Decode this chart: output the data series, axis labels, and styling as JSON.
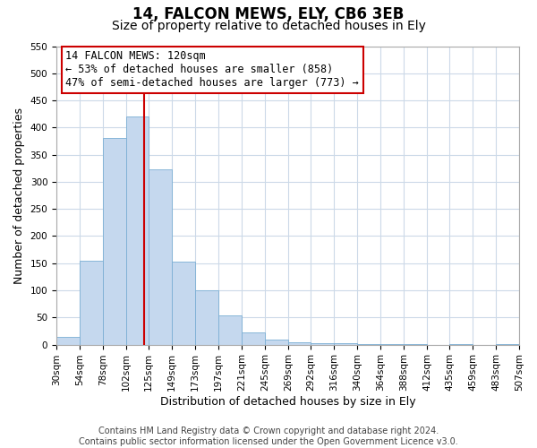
{
  "title": "14, FALCON MEWS, ELY, CB6 3EB",
  "subtitle": "Size of property relative to detached houses in Ely",
  "xlabel": "Distribution of detached houses by size in Ely",
  "ylabel": "Number of detached properties",
  "bar_left_edges": [
    30,
    54,
    78,
    102,
    125,
    149,
    173,
    197,
    221,
    245,
    269,
    292,
    316,
    340,
    364,
    388,
    412,
    435,
    459,
    483
  ],
  "bar_heights": [
    15,
    155,
    380,
    420,
    323,
    153,
    100,
    54,
    22,
    10,
    5,
    2,
    2,
    1,
    1,
    1,
    0,
    1,
    0,
    1
  ],
  "bar_widths": [
    24,
    24,
    24,
    23,
    24,
    24,
    24,
    24,
    24,
    24,
    23,
    24,
    24,
    24,
    24,
    24,
    23,
    24,
    24,
    24
  ],
  "bar_color": "#c5d8ee",
  "bar_edge_color": "#7bafd4",
  "property_line_x": 120,
  "property_line_color": "#cc0000",
  "annotation_line1": "14 FALCON MEWS: 120sqm",
  "annotation_line2": "← 53% of detached houses are smaller (858)",
  "annotation_line3": "47% of semi-detached houses are larger (773) →",
  "ylim": [
    0,
    550
  ],
  "yticks": [
    0,
    50,
    100,
    150,
    200,
    250,
    300,
    350,
    400,
    450,
    500,
    550
  ],
  "xtick_labels": [
    "30sqm",
    "54sqm",
    "78sqm",
    "102sqm",
    "125sqm",
    "149sqm",
    "173sqm",
    "197sqm",
    "221sqm",
    "245sqm",
    "269sqm",
    "292sqm",
    "316sqm",
    "340sqm",
    "364sqm",
    "388sqm",
    "412sqm",
    "435sqm",
    "459sqm",
    "483sqm",
    "507sqm"
  ],
  "xtick_positions": [
    30,
    54,
    78,
    102,
    125,
    149,
    173,
    197,
    221,
    245,
    269,
    292,
    316,
    340,
    364,
    388,
    412,
    435,
    459,
    483,
    507
  ],
  "xlim_left": 30,
  "xlim_right": 507,
  "footer_text": "Contains HM Land Registry data © Crown copyright and database right 2024.\nContains public sector information licensed under the Open Government Licence v3.0.",
  "background_color": "#ffffff",
  "grid_color": "#ccd9e8",
  "title_fontsize": 12,
  "subtitle_fontsize": 10,
  "axis_label_fontsize": 9,
  "tick_fontsize": 7.5,
  "annotation_fontsize": 8.5,
  "footer_fontsize": 7
}
